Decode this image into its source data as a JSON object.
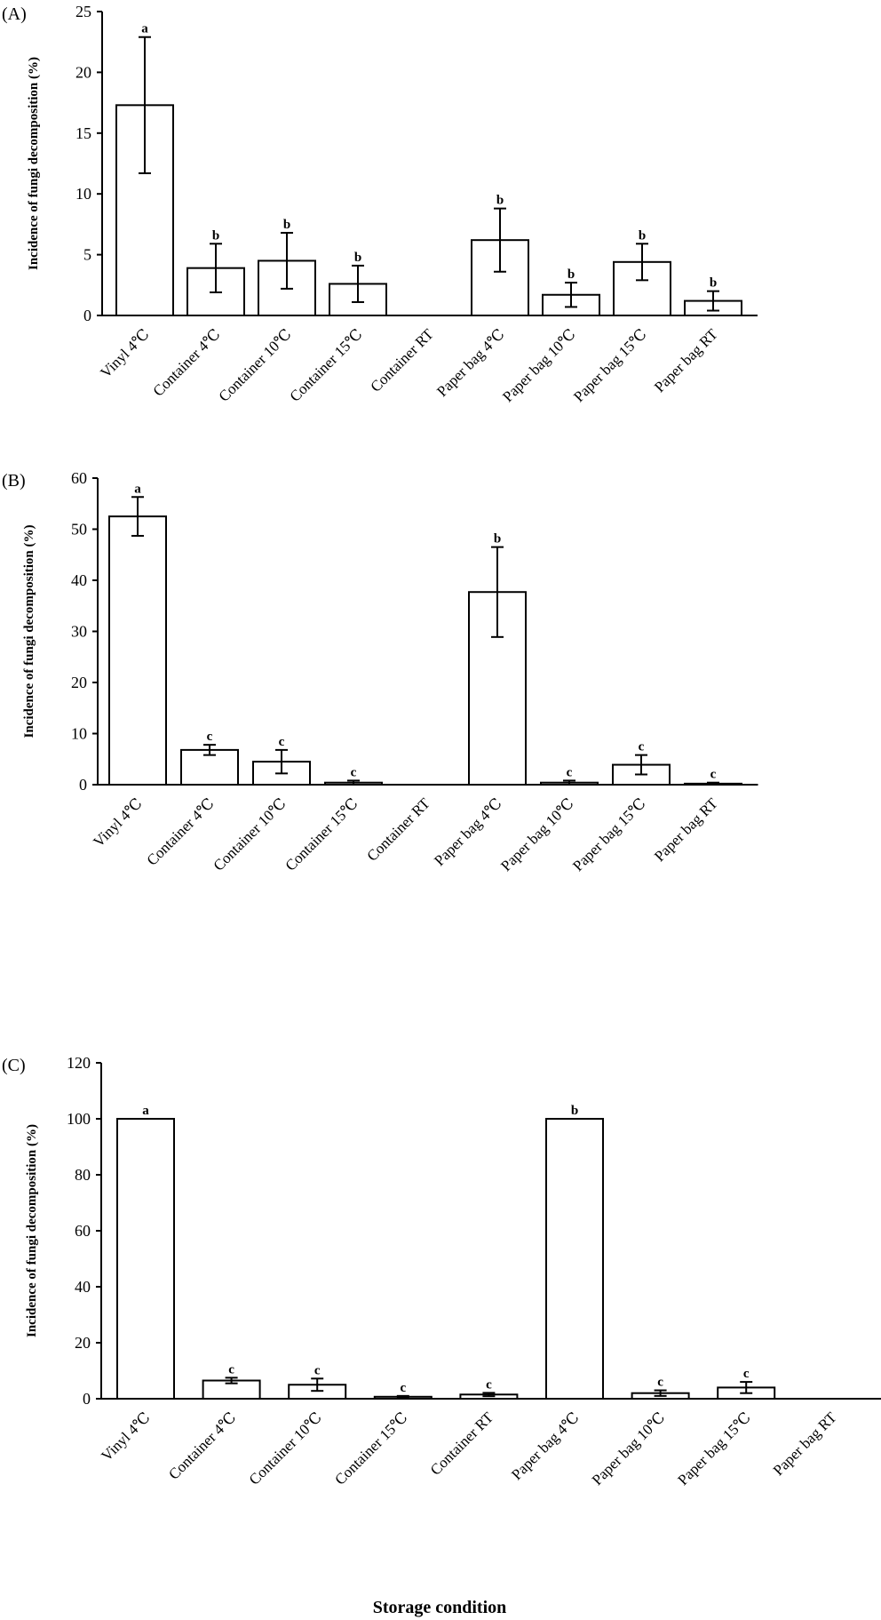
{
  "chart_data": [
    {
      "type": "bar",
      "panel_label": "(A)",
      "ylabel": "Incidence of fungi decomposition (%)",
      "ylim": [
        0,
        25
      ],
      "yticks": [
        0,
        5,
        10,
        15,
        20,
        25
      ],
      "categories": [
        "Vinyl 4℃",
        "Container 4℃",
        "Container 10℃",
        "Container 15℃",
        "Container RT",
        "Paper bag 4℃",
        "Paper bag 10℃",
        "Paper bag 15℃",
        "Paper bag RT"
      ],
      "values": [
        17.3,
        3.9,
        4.5,
        2.6,
        0,
        6.2,
        1.7,
        4.4,
        1.2
      ],
      "error": [
        5.6,
        2.0,
        2.3,
        1.5,
        0,
        2.6,
        1.0,
        1.5,
        0.8
      ],
      "significance": [
        "a",
        "b",
        "b",
        "b",
        "",
        "b",
        "b",
        "b",
        "b"
      ],
      "bar_fill": "#ffffff",
      "grid": false
    },
    {
      "type": "bar",
      "panel_label": "(B)",
      "ylabel": "Incidence of fungi decomposition (%)",
      "ylim": [
        0,
        60
      ],
      "yticks": [
        0,
        10,
        20,
        30,
        40,
        50,
        60
      ],
      "categories": [
        "Vinyl 4℃",
        "Container 4℃",
        "Container 10℃",
        "Container 15℃",
        "Container RT",
        "Paper bag 4℃",
        "Paper bag 10℃",
        "Paper bag 15℃",
        "Paper bag RT"
      ],
      "values": [
        52.5,
        6.8,
        4.5,
        0.4,
        0,
        37.7,
        0.4,
        3.9,
        0.2
      ],
      "error": [
        3.8,
        1.0,
        2.3,
        0.4,
        0,
        8.8,
        0.4,
        1.9,
        0.2
      ],
      "significance": [
        "a",
        "c",
        "c",
        "c",
        "",
        "b",
        "c",
        "c",
        "c"
      ],
      "bar_fill": "#ffffff",
      "grid": false
    },
    {
      "type": "bar",
      "panel_label": "(C)",
      "ylabel": "Incidence of fungi decomposition (%)",
      "xlabel": "Storage condition",
      "ylim": [
        0,
        120
      ],
      "yticks": [
        0,
        20,
        40,
        60,
        80,
        100,
        120
      ],
      "categories": [
        "Vinyl 4℃",
        "Container 4℃",
        "Container 10℃",
        "Container 15℃",
        "Container RT",
        "Paper bag 4℃",
        "Paper bag 10℃",
        "Paper bag 15℃",
        "Paper bag RT"
      ],
      "values": [
        100,
        6.5,
        5.0,
        0.7,
        1.5,
        100,
        2.0,
        4.0,
        0
      ],
      "error": [
        0,
        1.0,
        2.2,
        0.3,
        0.6,
        0,
        1.0,
        2.0,
        0
      ],
      "significance": [
        "a",
        "c",
        "c",
        "c",
        "c",
        "b",
        "c",
        "c",
        ""
      ],
      "bar_fill": "#ffffff",
      "grid": false
    }
  ]
}
